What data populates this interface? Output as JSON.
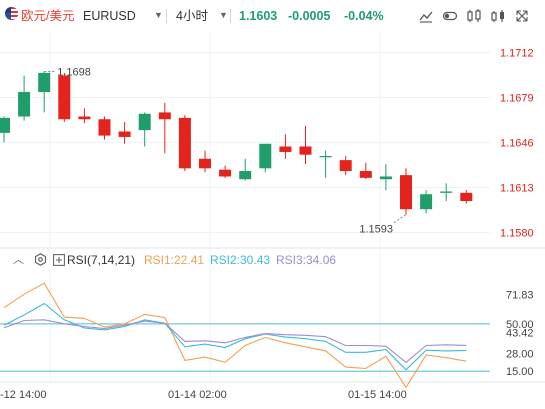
{
  "header": {
    "pair_cn": "欧元/美元",
    "pair": "EURUSD",
    "timeframe": "4小时",
    "price": "1.1603",
    "change": "-0.0005",
    "change_pct": "-0.04%",
    "icons": [
      "line-chart-icon",
      "toggle-icon",
      "indicator-icon",
      "compare-icon",
      "fullscreen-icon"
    ]
  },
  "colors": {
    "up": "#1f9e6b",
    "down": "#e3231c",
    "price_text": "#e3231c",
    "header_green": "#1f9e6b",
    "rsi1": "#f2a050",
    "rsi2": "#3dbbd6",
    "rsi3": "#9b8ed6",
    "level_line": "#4dbdd8",
    "grid": "#eef1f5"
  },
  "rsi_legend": {
    "name": "RSI(7,14,21)",
    "rsi1": "RSI1:22.41",
    "rsi2": "RSI2:30.43",
    "rsi3": "RSI3:34.06"
  },
  "chart_data": {
    "type": "candlestick",
    "price_axis": {
      "ticks": [
        "1.1712",
        "1.1679",
        "1.1646",
        "1.1613",
        "1.1580"
      ],
      "range": [
        1.157,
        1.1727
      ]
    },
    "time_axis": {
      "labels": [
        "-12 14:00",
        "01-14 02:00",
        "01-15 14:00"
      ]
    },
    "high_label": "1.1698",
    "low_label": "1.1593",
    "candles": [
      {
        "o": 1.1653,
        "h": 1.1665,
        "l": 1.1646,
        "c": 1.1664
      },
      {
        "o": 1.1665,
        "h": 1.1695,
        "l": 1.1662,
        "c": 1.1683
      },
      {
        "o": 1.1683,
        "h": 1.1698,
        "l": 1.1668,
        "c": 1.1697
      },
      {
        "o": 1.1695,
        "h": 1.1697,
        "l": 1.1661,
        "c": 1.1663
      },
      {
        "o": 1.1665,
        "h": 1.1671,
        "l": 1.166,
        "c": 1.1663
      },
      {
        "o": 1.1663,
        "h": 1.1665,
        "l": 1.1648,
        "c": 1.1651
      },
      {
        "o": 1.1654,
        "h": 1.1661,
        "l": 1.1645,
        "c": 1.165
      },
      {
        "o": 1.1655,
        "h": 1.1668,
        "l": 1.1643,
        "c": 1.1667
      },
      {
        "o": 1.1668,
        "h": 1.1675,
        "l": 1.1638,
        "c": 1.1663
      },
      {
        "o": 1.1664,
        "h": 1.1666,
        "l": 1.1625,
        "c": 1.1627
      },
      {
        "o": 1.1634,
        "h": 1.164,
        "l": 1.1624,
        "c": 1.1627
      },
      {
        "o": 1.1626,
        "h": 1.1629,
        "l": 1.162,
        "c": 1.1621
      },
      {
        "o": 1.1619,
        "h": 1.1634,
        "l": 1.1618,
        "c": 1.1625
      },
      {
        "o": 1.1627,
        "h": 1.1644,
        "l": 1.1624,
        "c": 1.1645
      },
      {
        "o": 1.1643,
        "h": 1.1652,
        "l": 1.1634,
        "c": 1.1639
      },
      {
        "o": 1.1643,
        "h": 1.1658,
        "l": 1.163,
        "c": 1.1637
      },
      {
        "o": 1.1636,
        "h": 1.164,
        "l": 1.162,
        "c": 1.1636
      },
      {
        "o": 1.1633,
        "h": 1.1636,
        "l": 1.1622,
        "c": 1.1625
      },
      {
        "o": 1.1625,
        "h": 1.1631,
        "l": 1.1619,
        "c": 1.162
      },
      {
        "o": 1.1619,
        "h": 1.163,
        "l": 1.1611,
        "c": 1.1621
      },
      {
        "o": 1.1622,
        "h": 1.1627,
        "l": 1.1593,
        "c": 1.1597
      },
      {
        "o": 1.1597,
        "h": 1.1611,
        "l": 1.1594,
        "c": 1.1608
      },
      {
        "o": 1.1609,
        "h": 1.1616,
        "l": 1.1603,
        "c": 1.161
      },
      {
        "o": 1.1609,
        "h": 1.1611,
        "l": 1.1601,
        "c": 1.1603
      }
    ],
    "rsi_axis": {
      "ticks": [
        "71.83",
        "50.00",
        "43.42",
        "28.00",
        "15.00"
      ],
      "range": [
        8.5,
        88.3
      ],
      "levels": [
        50,
        15
      ]
    },
    "rsi_series": [
      {
        "name": "RSI1",
        "values": [
          62,
          71.8,
          80,
          55,
          54,
          47.6,
          50,
          57,
          54.6,
          23,
          25.4,
          21.6,
          34,
          40,
          36,
          33,
          30,
          18,
          17,
          26,
          3,
          27,
          25,
          22.4
        ]
      },
      {
        "name": "RSI2",
        "values": [
          49,
          56.5,
          65,
          53,
          47,
          45.5,
          48,
          53,
          50.5,
          33,
          35,
          32.5,
          39,
          42.5,
          40.2,
          39,
          37,
          29,
          29,
          31,
          16,
          30.5,
          30,
          30.4
        ]
      },
      {
        "name": "RSI3",
        "values": [
          47,
          52.5,
          53,
          50,
          48,
          46.5,
          49,
          52,
          50.5,
          37,
          37.5,
          36,
          40,
          42.8,
          42,
          41.5,
          40.5,
          34,
          34,
          33.5,
          21.5,
          34,
          34.5,
          34.1
        ]
      }
    ]
  }
}
